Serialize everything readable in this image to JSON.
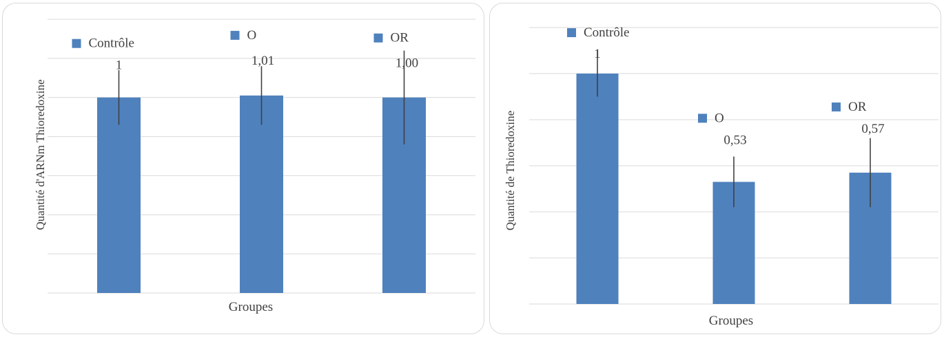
{
  "chart_data": [
    {
      "type": "bar",
      "ylabel": "Quantité d'ARNm Thioredoxine",
      "xlabel": "Groupes",
      "categories": [
        "Contrôle",
        "O",
        "OR"
      ],
      "series": [
        {
          "name": "Contrôle",
          "value": 1,
          "label": "1",
          "error": 0.14
        },
        {
          "name": "O",
          "value": 1.01,
          "label": "1,01",
          "error": 0.15
        },
        {
          "name": "OR",
          "value": 1.0,
          "label": "1,00",
          "error": 0.24
        }
      ],
      "ylim": [
        0,
        1.4
      ],
      "gridlines": 7,
      "grid": true,
      "legend": "per-bar labels above bars",
      "bar_color": "#4f81bd"
    },
    {
      "type": "bar",
      "ylabel": "Quantité de Thioredoxine",
      "xlabel": "Groupes",
      "categories": [
        "Contrôle",
        "O",
        "OR"
      ],
      "series": [
        {
          "name": "Contrôle",
          "value": 1,
          "label": "1",
          "error": 0.1
        },
        {
          "name": "O",
          "value": 0.53,
          "label": "0,53",
          "error": 0.11
        },
        {
          "name": "OR",
          "value": 0.57,
          "label": "0,57",
          "error": 0.15
        }
      ],
      "ylim": [
        0,
        1.2
      ],
      "gridlines": 6,
      "grid": true,
      "legend": "per-bar labels above bars",
      "bar_color": "#4f81bd"
    }
  ]
}
